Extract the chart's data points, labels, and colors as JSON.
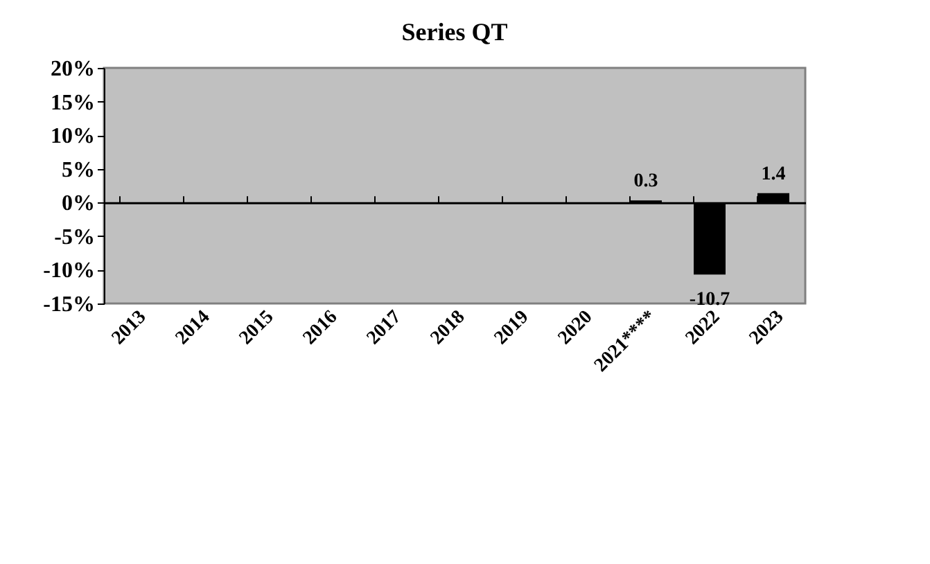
{
  "chart_data": {
    "type": "bar",
    "title": "Series QT",
    "categories": [
      "2013",
      "2014",
      "2015",
      "2016",
      "2017",
      "2018",
      "2019",
      "2020",
      "2021****",
      "2022",
      "2023"
    ],
    "values": [
      null,
      null,
      null,
      null,
      null,
      null,
      null,
      null,
      0.3,
      -10.7,
      1.4
    ],
    "color": "#000000",
    "data_labels": true,
    "ylim": [
      -15,
      20
    ],
    "yticks": [
      {
        "value": -15,
        "label": "-15%"
      },
      {
        "value": -10,
        "label": "-10%"
      },
      {
        "value": -5,
        "label": "-5%"
      },
      {
        "value": 0,
        "label": "0%"
      },
      {
        "value": 5,
        "label": "5%"
      },
      {
        "value": 10,
        "label": "10%"
      },
      {
        "value": 15,
        "label": "15%"
      },
      {
        "value": 20,
        "label": "20%"
      }
    ]
  }
}
